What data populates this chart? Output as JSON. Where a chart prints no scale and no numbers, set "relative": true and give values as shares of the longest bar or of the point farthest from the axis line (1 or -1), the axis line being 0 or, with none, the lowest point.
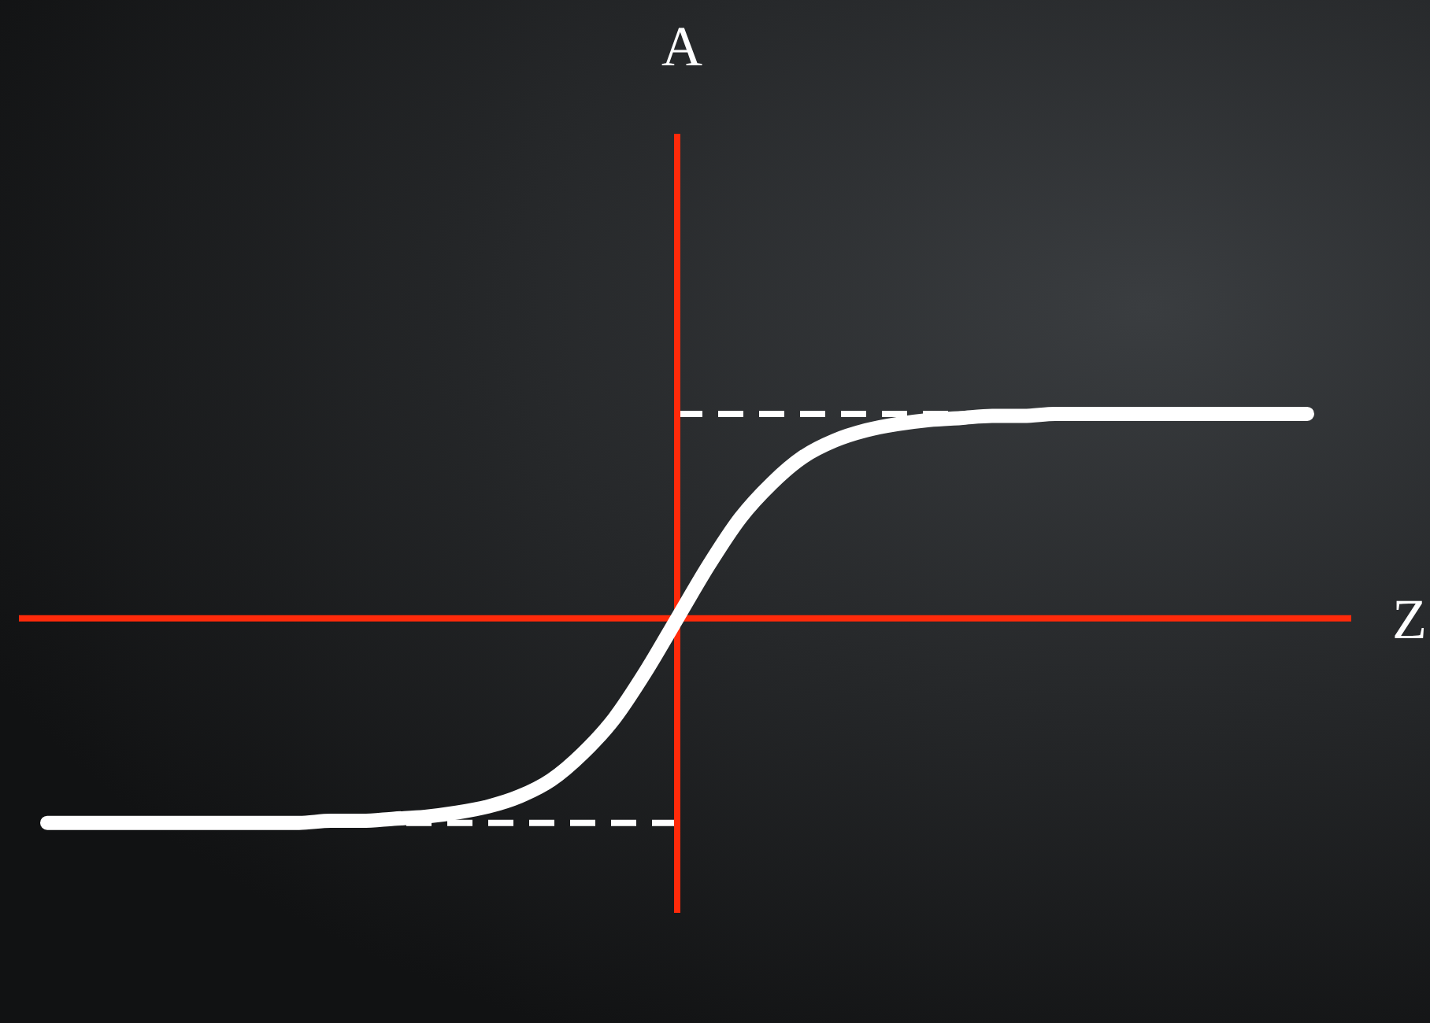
{
  "chart_data": {
    "type": "line",
    "relative": true,
    "xlabel": "Z",
    "annotations": [
      "A"
    ],
    "color": "#ffffff",
    "marker": "none",
    "categories": [
      null,
      null,
      null,
      null,
      null,
      null,
      null,
      null,
      null,
      null,
      null,
      null,
      null,
      null,
      null,
      null,
      null,
      null,
      null,
      null,
      null,
      null,
      null,
      null,
      null,
      null,
      null,
      null,
      null,
      null,
      null,
      null,
      null,
      null,
      null,
      null,
      null,
      null,
      null,
      null,
      null
    ],
    "values": [
      -1,
      -1,
      -1,
      -1,
      -1,
      -1,
      -1,
      -1,
      -1,
      -0.99,
      -0.99,
      -0.98,
      -0.97,
      -0.95,
      -0.92,
      -0.87,
      -0.79,
      -0.66,
      -0.49,
      -0.26,
      0,
      0.26,
      0.49,
      0.66,
      0.79,
      0.87,
      0.92,
      0.95,
      0.97,
      0.98,
      0.99,
      0.99,
      1,
      1,
      1,
      1,
      1,
      1,
      1,
      1,
      1
    ],
    "ref_lines": [
      {
        "axis": "y",
        "value": 0,
        "color": "#ff2a0a",
        "line_style": "solid"
      },
      {
        "axis": "y",
        "value": 1,
        "color": "#ffffff",
        "line_style": "dashed"
      },
      {
        "axis": "y",
        "value": -1,
        "color": "#ffffff",
        "line_style": "dashed"
      }
    ]
  }
}
